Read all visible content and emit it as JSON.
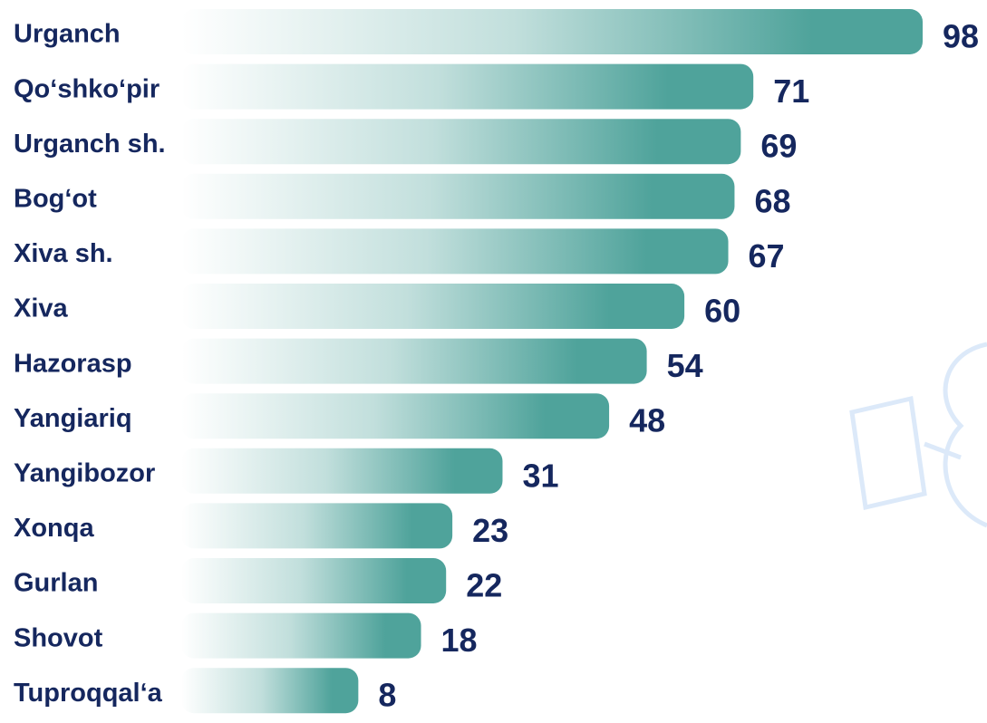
{
  "chart_data": {
    "type": "bar",
    "orientation": "horizontal",
    "color": "#4fa39b",
    "categories": [
      "Urganch",
      "Qoʻshkoʻpir",
      "Urganch sh.",
      "Bogʻot",
      "Xiva sh.",
      "Xiva",
      "Hazorasp",
      "Yangiariq",
      "Yangibozor",
      "Xonqa",
      "Gurlan",
      "Shovot",
      "Tuproqqalʻa"
    ],
    "values": [
      98,
      71,
      69,
      68,
      67,
      60,
      54,
      48,
      31,
      23,
      22,
      18,
      8
    ]
  }
}
